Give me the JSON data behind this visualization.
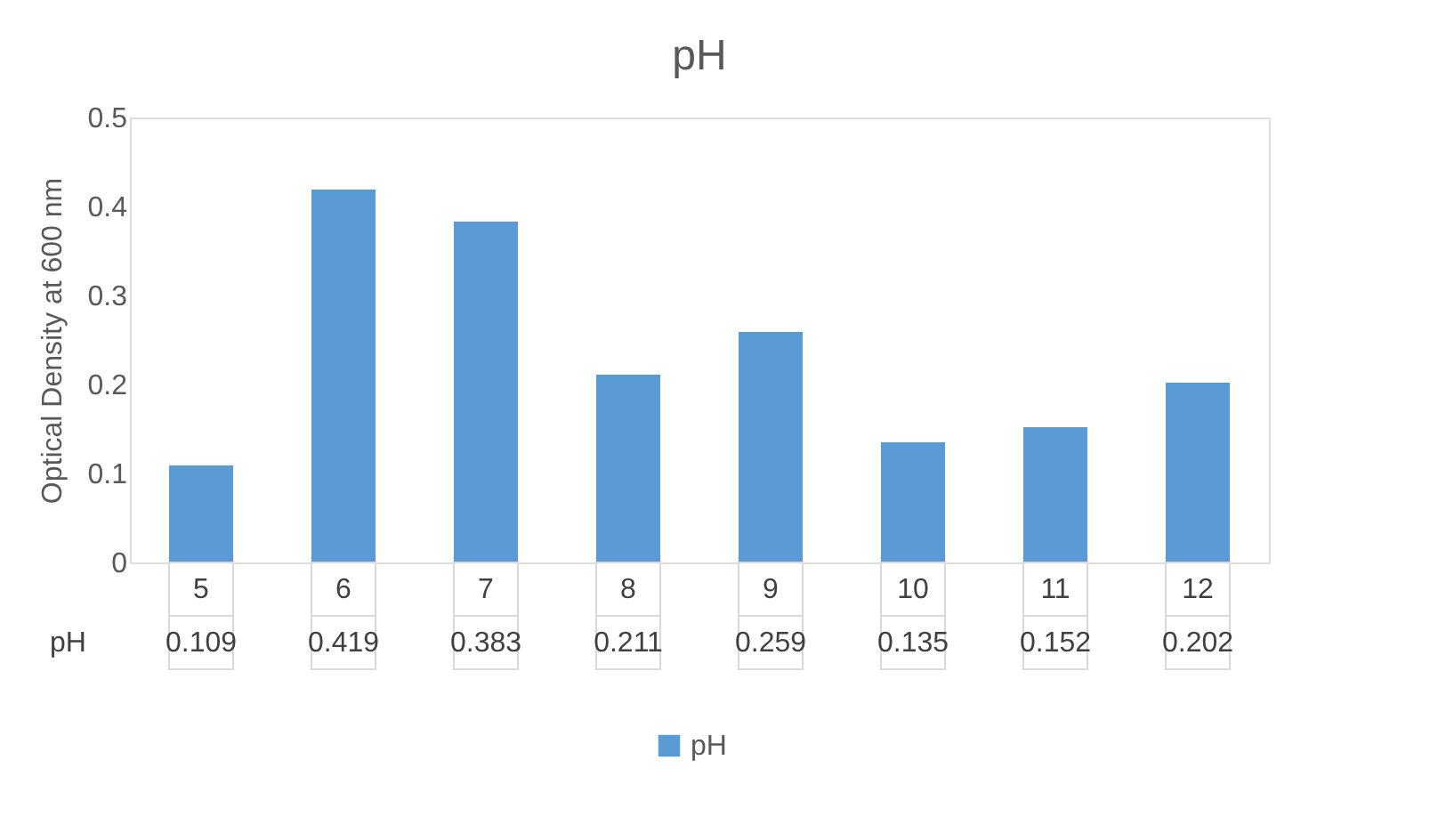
{
  "chart_data": {
    "type": "bar",
    "title": "pH",
    "ylabel": "Optical Density at 600 nm",
    "categories": [
      "5",
      "6",
      "7",
      "8",
      "9",
      "10",
      "11",
      "12"
    ],
    "series": [
      {
        "name": "pH",
        "color": "#5b9bd5",
        "values": [
          0.109,
          0.419,
          0.383,
          0.211,
          0.259,
          0.135,
          0.152,
          0.202
        ]
      }
    ],
    "ylim": [
      0,
      0.5
    ],
    "yticks": [
      0,
      0.1,
      0.2,
      0.3,
      0.4,
      0.5
    ],
    "grid": false,
    "legend": "bottom",
    "data_labels": true
  }
}
